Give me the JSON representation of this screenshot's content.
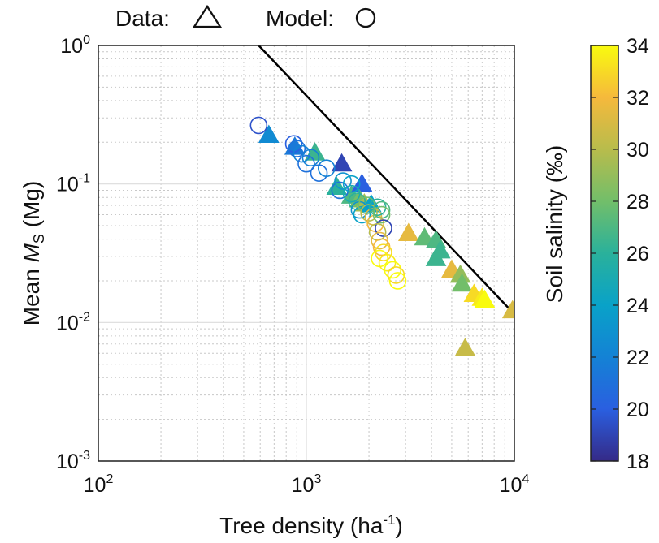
{
  "legend": {
    "data_label": "Data:",
    "model_label": "Model:"
  },
  "chart_data": {
    "type": "scatter",
    "xscale": "log",
    "yscale": "log",
    "xlim": [
      100,
      10000
    ],
    "ylim": [
      0.001,
      1
    ],
    "xlabel": {
      "main": "Tree density (ha",
      "sup": "-1",
      "end": ")"
    },
    "ylabel": {
      "pre": "Mean ",
      "sym": "M",
      "sub": "S",
      "post": " (Mg)"
    },
    "xticks": [
      {
        "value": 100,
        "base": "10",
        "exp": "2"
      },
      {
        "value": 1000,
        "base": "10",
        "exp": "3"
      },
      {
        "value": 10000,
        "base": "10",
        "exp": "4"
      }
    ],
    "yticks": [
      {
        "value": 1,
        "base": "10",
        "exp": "0"
      },
      {
        "value": 0.1,
        "base": "10",
        "exp": "-1"
      },
      {
        "value": 0.01,
        "base": "10",
        "exp": "-2"
      },
      {
        "value": 0.001,
        "base": "10",
        "exp": "-3"
      }
    ],
    "grid": true,
    "legend_position": "top",
    "colorbar": {
      "label": "Soil salinity (‰)",
      "range": [
        18,
        34
      ],
      "ticks": [
        18,
        20,
        22,
        24,
        26,
        28,
        30,
        32,
        34
      ],
      "colormap": "parula"
    },
    "reference_line": {
      "x": [
        590,
        10000
      ],
      "y": [
        1.0,
        0.0115
      ],
      "color": "#000000"
    },
    "series": [
      {
        "marker": "triangle",
        "points": [
          {
            "x": 660,
            "y": 0.225,
            "s": 22.5
          },
          {
            "x": 880,
            "y": 0.185,
            "s": 21.5
          },
          {
            "x": 1100,
            "y": 0.168,
            "s": 26.5
          },
          {
            "x": 1480,
            "y": 0.14,
            "s": 19
          },
          {
            "x": 1400,
            "y": 0.095,
            "s": 26
          },
          {
            "x": 1650,
            "y": 0.082,
            "s": 27
          },
          {
            "x": 1850,
            "y": 0.1,
            "s": 20
          },
          {
            "x": 1800,
            "y": 0.077,
            "s": 28
          },
          {
            "x": 1900,
            "y": 0.072,
            "s": 29.5
          },
          {
            "x": 2050,
            "y": 0.071,
            "s": 24
          },
          {
            "x": 3100,
            "y": 0.044,
            "s": 31.5
          },
          {
            "x": 3700,
            "y": 0.041,
            "s": 27.5
          },
          {
            "x": 4200,
            "y": 0.039,
            "s": 27
          },
          {
            "x": 4400,
            "y": 0.033,
            "s": 26.5
          },
          {
            "x": 4200,
            "y": 0.029,
            "s": 26.5
          },
          {
            "x": 5000,
            "y": 0.024,
            "s": 31.5
          },
          {
            "x": 5500,
            "y": 0.022,
            "s": 29
          },
          {
            "x": 5600,
            "y": 0.019,
            "s": 28
          },
          {
            "x": 6400,
            "y": 0.016,
            "s": 33
          },
          {
            "x": 7000,
            "y": 0.015,
            "s": 33.5
          },
          {
            "x": 7200,
            "y": 0.0145,
            "s": 34
          },
          {
            "x": 9800,
            "y": 0.0122,
            "s": 31
          },
          {
            "x": 5800,
            "y": 0.0065,
            "s": 30.5
          }
        ]
      },
      {
        "marker": "circle",
        "points": [
          {
            "x": 590,
            "y": 0.265,
            "s": 19.5
          },
          {
            "x": 870,
            "y": 0.195,
            "s": 20
          },
          {
            "x": 900,
            "y": 0.18,
            "s": 21
          },
          {
            "x": 950,
            "y": 0.165,
            "s": 22
          },
          {
            "x": 1000,
            "y": 0.14,
            "s": 21
          },
          {
            "x": 1050,
            "y": 0.155,
            "s": 22
          },
          {
            "x": 1150,
            "y": 0.12,
            "s": 21
          },
          {
            "x": 1250,
            "y": 0.13,
            "s": 22
          },
          {
            "x": 1450,
            "y": 0.09,
            "s": 21
          },
          {
            "x": 1500,
            "y": 0.105,
            "s": 23
          },
          {
            "x": 1650,
            "y": 0.1,
            "s": 24
          },
          {
            "x": 1650,
            "y": 0.085,
            "s": 25
          },
          {
            "x": 1750,
            "y": 0.075,
            "s": 26
          },
          {
            "x": 1800,
            "y": 0.065,
            "s": 23
          },
          {
            "x": 1850,
            "y": 0.06,
            "s": 24
          },
          {
            "x": 1950,
            "y": 0.07,
            "s": 28
          },
          {
            "x": 2000,
            "y": 0.062,
            "s": 30
          },
          {
            "x": 2100,
            "y": 0.058,
            "s": 31
          },
          {
            "x": 2150,
            "y": 0.052,
            "s": 32
          },
          {
            "x": 2200,
            "y": 0.068,
            "s": 26
          },
          {
            "x": 2300,
            "y": 0.065,
            "s": 27
          },
          {
            "x": 2300,
            "y": 0.06,
            "s": 28
          },
          {
            "x": 2350,
            "y": 0.048,
            "s": 19
          },
          {
            "x": 2200,
            "y": 0.045,
            "s": 30
          },
          {
            "x": 2250,
            "y": 0.039,
            "s": 31.5
          },
          {
            "x": 2300,
            "y": 0.035,
            "s": 32
          },
          {
            "x": 2350,
            "y": 0.032,
            "s": 33
          },
          {
            "x": 2250,
            "y": 0.029,
            "s": 34
          },
          {
            "x": 2450,
            "y": 0.027,
            "s": 33.5
          },
          {
            "x": 2600,
            "y": 0.024,
            "s": 34
          },
          {
            "x": 2700,
            "y": 0.022,
            "s": 33
          },
          {
            "x": 2750,
            "y": 0.02,
            "s": 34
          }
        ]
      }
    ]
  }
}
